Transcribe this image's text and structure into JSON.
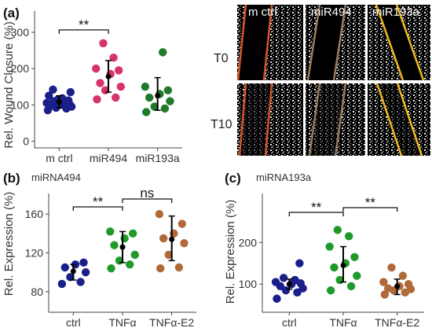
{
  "panels": {
    "a": {
      "label": "(a)",
      "ylabel": "Rel. Wound Closure (%)",
      "yticks": [
        "0",
        "100",
        "200",
        "300"
      ],
      "image_columns": [
        "m ctrl",
        "miR494",
        "miR193a"
      ],
      "image_rows": [
        "T0",
        "T10"
      ]
    },
    "b": {
      "label": "(b)",
      "subtitle": "miRNA494",
      "ylabel": "Rel. Expression (%)",
      "yticks": [
        "80",
        "120",
        "160"
      ]
    },
    "c": {
      "label": "(c)",
      "subtitle": "miRNA193a",
      "ylabel": "Rel. Expression (%)",
      "yticks": [
        "100",
        "200"
      ]
    }
  },
  "chart_data": [
    {
      "id": "a",
      "type": "scatter",
      "categories": [
        "m ctrl",
        "miR494",
        "miR193a"
      ],
      "ylabel": "Rel. Wound Closure (%)",
      "ylim": [
        -10,
        350
      ],
      "series": [
        {
          "category": "m ctrl",
          "color": "#1a1f8a",
          "points": [
            85,
            90,
            92,
            95,
            98,
            100,
            102,
            105,
            108,
            110,
            112,
            115,
            118,
            125,
            135,
            142
          ],
          "mean": 108,
          "err": [
            92,
            125
          ]
        },
        {
          "category": "miR494",
          "color": "#d6336b",
          "points": [
            115,
            120,
            140,
            150,
            160,
            185,
            195,
            200,
            230,
            270
          ],
          "mean": 178,
          "err": [
            135,
            222
          ]
        },
        {
          "category": "miR193a",
          "color": "#1f7a2a",
          "points": [
            80,
            90,
            95,
            110,
            120,
            130,
            140,
            150,
            245
          ],
          "mean": 125,
          "err": [
            85,
            175
          ]
        }
      ],
      "significance": [
        {
          "pair": [
            "m ctrl",
            "miR494"
          ],
          "label": "**"
        }
      ]
    },
    {
      "id": "b",
      "type": "scatter",
      "categories": [
        "ctrl",
        "TNFα",
        "TNFα-E2"
      ],
      "ylabel": "Rel. Expression (%)",
      "ylim": [
        62,
        178
      ],
      "series": [
        {
          "category": "ctrl",
          "color": "#1a1f8a",
          "points": [
            88,
            90,
            95,
            100,
            105,
            108,
            110
          ],
          "mean": 101,
          "err": [
            92,
            108
          ]
        },
        {
          "category": "TNFα",
          "color": "#1f9a2a",
          "points": [
            104,
            108,
            112,
            118,
            128,
            135,
            140,
            142
          ],
          "mean": 126,
          "err": [
            110,
            142
          ]
        },
        {
          "category": "TNFα-E2",
          "color": "#b06a3a",
          "points": [
            104,
            105,
            118,
            130,
            135,
            140,
            150,
            160
          ],
          "mean": 134,
          "err": [
            112,
            158
          ]
        }
      ],
      "significance": [
        {
          "pair": [
            "ctrl",
            "TNFα"
          ],
          "label": "**"
        },
        {
          "pair": [
            "TNFα",
            "TNFα-E2"
          ],
          "label": "ns"
        }
      ]
    },
    {
      "id": "c",
      "type": "scatter",
      "categories": [
        "ctrl",
        "TNFα",
        "TNFα-E2"
      ],
      "ylabel": "Rel. Expression (%)",
      "ylim": [
        40,
        310
      ],
      "series": [
        {
          "category": "ctrl",
          "color": "#1a1f8a",
          "points": [
            65,
            80,
            85,
            90,
            95,
            100,
            102,
            105,
            110,
            115,
            150
          ],
          "mean": 100,
          "err": [
            88,
            112
          ]
        },
        {
          "category": "TNFα",
          "color": "#1f9a2a",
          "points": [
            85,
            95,
            110,
            120,
            140,
            150,
            165,
            190,
            215,
            230
          ],
          "mean": 145,
          "err": [
            105,
            190
          ]
        },
        {
          "category": "TNFα-E2",
          "color": "#b06a3a",
          "points": [
            75,
            80,
            85,
            88,
            90,
            95,
            100,
            105,
            120,
            140
          ],
          "mean": 95,
          "err": [
            75,
            112
          ]
        }
      ],
      "significance": [
        {
          "pair": [
            "ctrl",
            "TNFα"
          ],
          "label": "**"
        },
        {
          "pair": [
            "TNFα",
            "TNFα-E2"
          ],
          "label": "**"
        }
      ]
    }
  ]
}
